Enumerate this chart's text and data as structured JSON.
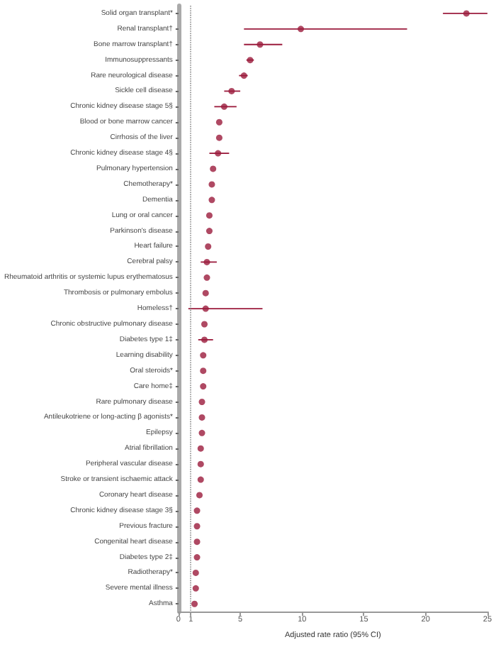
{
  "chart_data": {
    "type": "scatter",
    "orientation": "horizontal",
    "xlabel": "Adjusted rate ratio (95% CI)",
    "marker": "circle",
    "color": "#9b1b3c",
    "categories": [
      "Solid organ transplant*",
      "Renal transplant†",
      "Bone marrow transplant†",
      "Immunosuppressants",
      "Rare neurological disease",
      "Sickle cell disease",
      "Chronic kidney disease stage 5§",
      "Blood or bone marrow cancer",
      "Cirrhosis of the liver",
      "Chronic kidney disease stage 4§",
      "Pulmonary hypertension",
      "Chemotherapy*",
      "Dementia",
      "Lung or oral cancer",
      "Parkinson's disease",
      "Heart failure",
      "Cerebral palsy",
      "Rheumatoid arthritis or systemic lupus erythematosus",
      "Thrombosis or pulmonary embolus",
      "Homeless†",
      "Chronic obstructive pulmonary disease",
      "Diabetes type 1‡",
      "Learning disability",
      "Oral steroids*",
      "Care home‡",
      "Rare pulmonary disease",
      "Antileukotriene or long-acting β agonists*",
      "Epilepsy",
      "Atrial fibrillation",
      "Peripheral vascular disease",
      "Stroke or transient ischaemic attack",
      "Coronary heart disease",
      "Chronic kidney disease stage 3§",
      "Previous fracture",
      "Congenital heart disease",
      "Diabetes type 2‡",
      "Radiotherapy*",
      "Severe mental illness",
      "Asthma"
    ],
    "values": [
      23.3,
      9.9,
      6.6,
      5.8,
      5.3,
      4.3,
      3.7,
      3.3,
      3.3,
      3.2,
      2.8,
      2.7,
      2.7,
      2.5,
      2.5,
      2.4,
      2.3,
      2.3,
      2.2,
      2.2,
      2.1,
      2.1,
      2.0,
      2.0,
      2.0,
      1.9,
      1.9,
      1.9,
      1.8,
      1.8,
      1.8,
      1.7,
      1.5,
      1.5,
      1.5,
      1.5,
      1.4,
      1.4,
      1.3
    ],
    "errors": [
      [
        21.4,
        25
      ],
      [
        5.3,
        18.5
      ],
      [
        5.3,
        8.4
      ],
      [
        5.5,
        6.1
      ],
      [
        4.9,
        5.6
      ],
      [
        3.7,
        5.0
      ],
      [
        2.9,
        4.7
      ],
      null,
      null,
      [
        2.5,
        4.1
      ],
      null,
      null,
      null,
      null,
      null,
      null,
      [
        1.8,
        3.1
      ],
      null,
      null,
      [
        0.8,
        6.8
      ],
      null,
      [
        1.6,
        2.8
      ],
      null,
      null,
      null,
      null,
      null,
      null,
      null,
      null,
      null,
      null,
      null,
      null,
      null,
      null,
      null,
      null,
      null
    ],
    "xlim": [
      0,
      25
    ],
    "xticks": [
      0,
      1,
      5,
      10,
      15,
      20,
      25
    ],
    "ref_lines": [
      {
        "axis": "x",
        "value": 1,
        "line_style": "dotted",
        "color": "#888888"
      }
    ]
  }
}
